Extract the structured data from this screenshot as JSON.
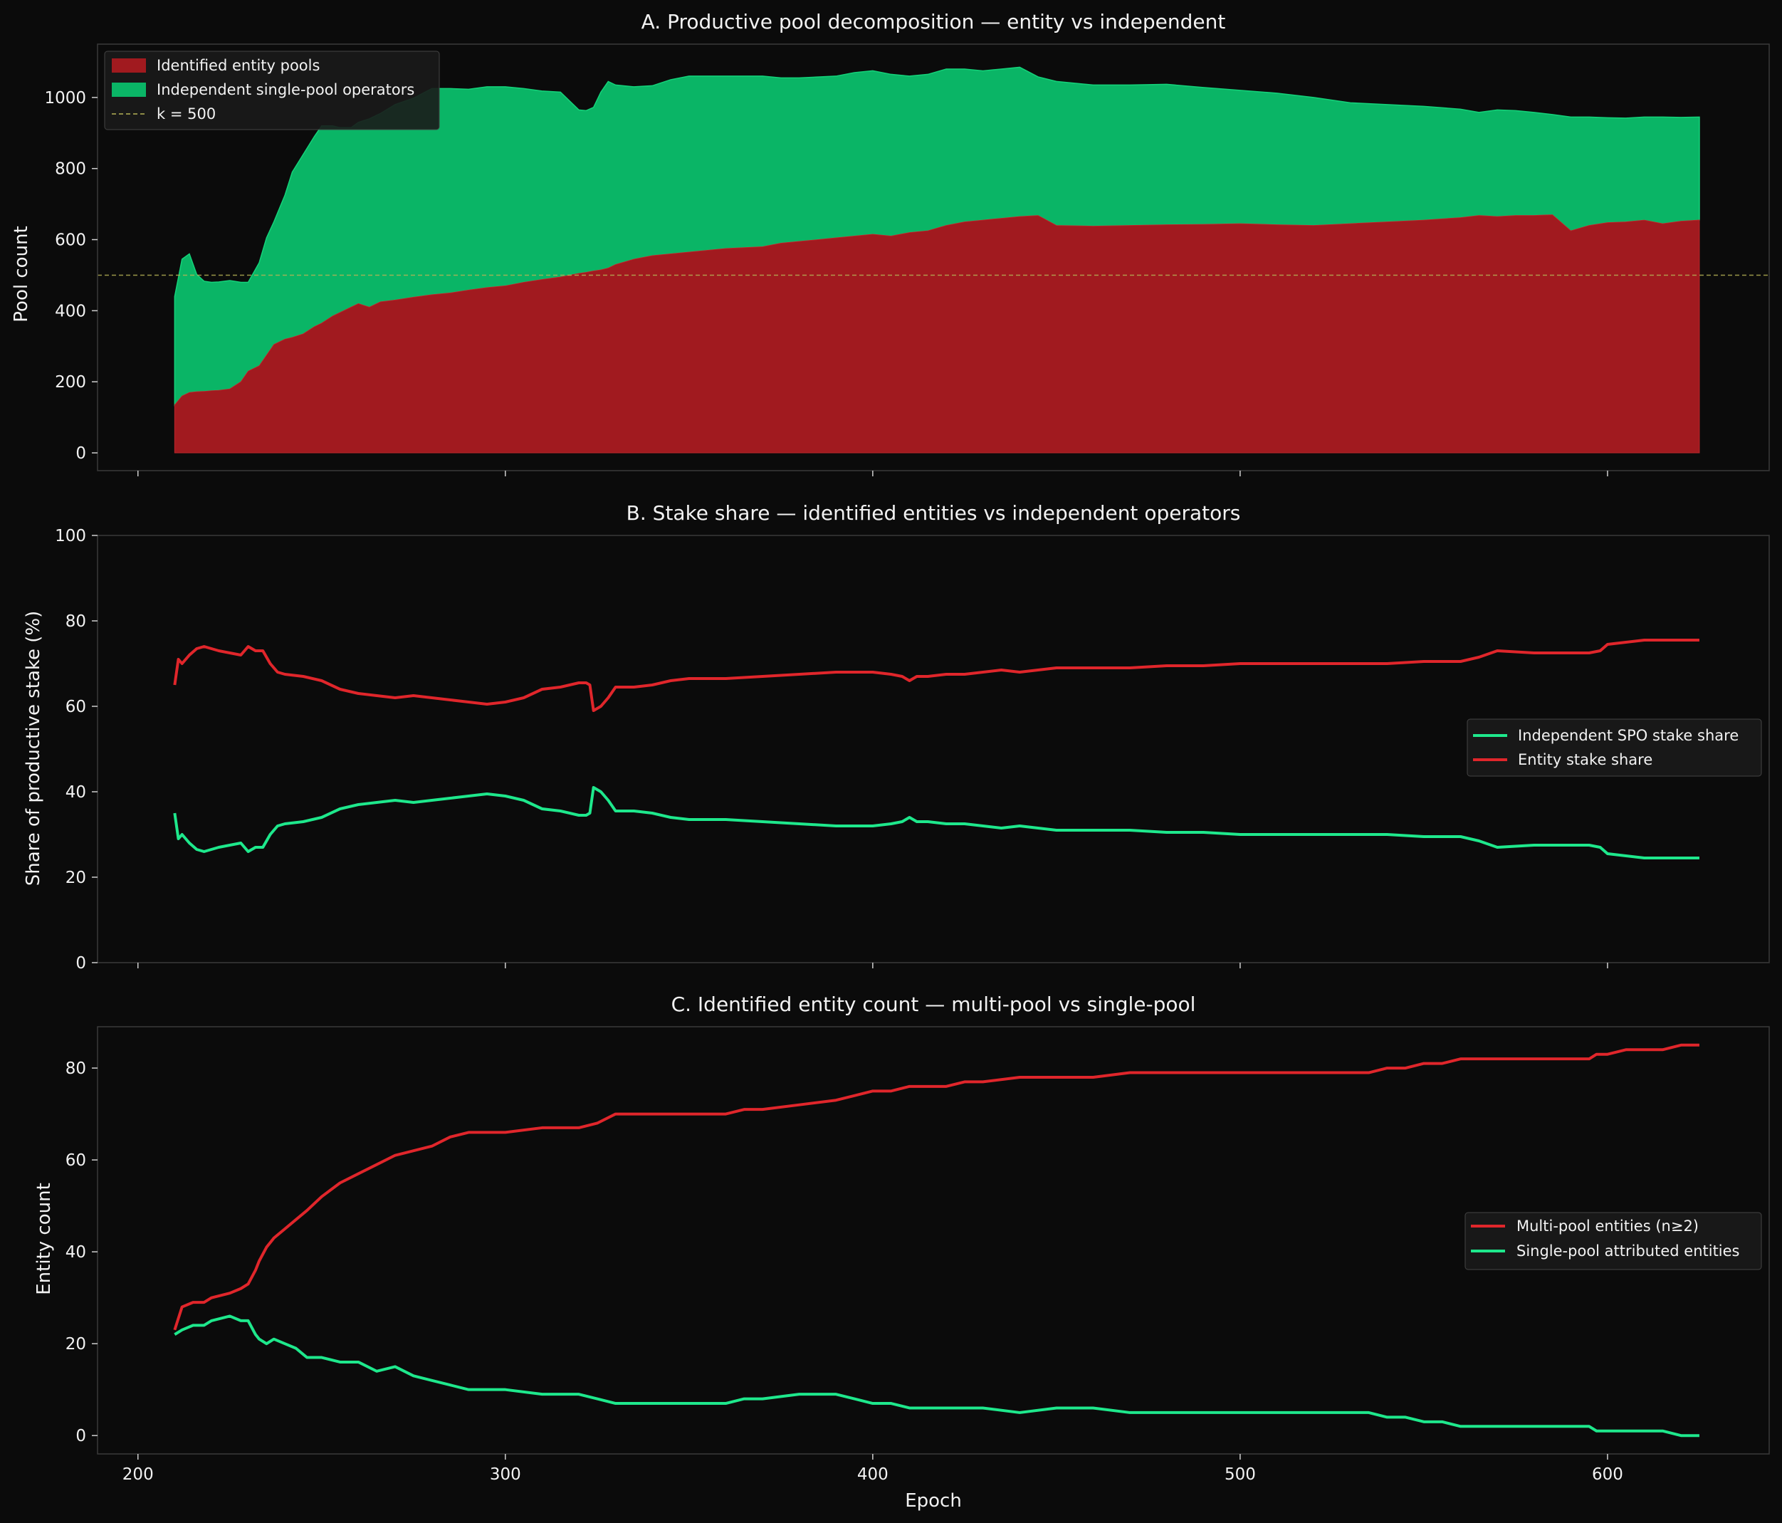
{
  "colors": {
    "background": "#0b0b0b",
    "entity_red": "#a11a1f",
    "entity_line_red": "#e0262b",
    "independent_green": "#0ab566",
    "independent_line_green": "#1ee88c",
    "k_line": "#b5b255",
    "axes_edge": "#3a3a3a"
  },
  "chart_data": [
    {
      "type": "area",
      "title": "A. Productive pool decomposition — entity vs independent",
      "xlabel": "",
      "ylabel": "Pool count",
      "xlim": [
        189,
        644
      ],
      "ylim": [
        -50,
        1150
      ],
      "xticks": [
        200,
        300,
        400,
        500,
        600
      ],
      "yticks": [
        0,
        200,
        400,
        600,
        800,
        1000
      ],
      "xtick_labels_shown": false,
      "legend": {
        "position": "top-left",
        "entries": [
          "Identified entity pools",
          "Independent single-pool operators",
          "k = 500"
        ]
      },
      "reference_line": {
        "label": "k = 500",
        "y": 500,
        "style": "dashed"
      },
      "stacked": true,
      "x": [
        210,
        212,
        214,
        216,
        218,
        220,
        222,
        225,
        228,
        230,
        233,
        235,
        237,
        240,
        242,
        245,
        248,
        250,
        253,
        255,
        258,
        260,
        263,
        266,
        270,
        275,
        280,
        285,
        290,
        295,
        300,
        305,
        310,
        315,
        320,
        322,
        324,
        326,
        328,
        330,
        335,
        340,
        345,
        350,
        360,
        370,
        375,
        380,
        390,
        395,
        400,
        405,
        410,
        415,
        420,
        425,
        430,
        435,
        440,
        445,
        450,
        460,
        470,
        480,
        490,
        500,
        510,
        520,
        530,
        540,
        550,
        560,
        565,
        570,
        575,
        580,
        585,
        590,
        595,
        600,
        605,
        610,
        615,
        620,
        625
      ],
      "series": [
        {
          "name": "Identified entity pools",
          "values": [
            135,
            160,
            170,
            172,
            173,
            175,
            176,
            180,
            200,
            230,
            245,
            275,
            305,
            320,
            325,
            335,
            355,
            365,
            385,
            395,
            410,
            420,
            410,
            425,
            430,
            438,
            445,
            450,
            458,
            465,
            470,
            480,
            488,
            495,
            505,
            508,
            512,
            515,
            520,
            530,
            545,
            555,
            560,
            565,
            575,
            580,
            590,
            595,
            605,
            610,
            615,
            610,
            620,
            625,
            640,
            650,
            655,
            660,
            665,
            668,
            640,
            638,
            640,
            642,
            643,
            645,
            642,
            640,
            645,
            650,
            655,
            662,
            668,
            665,
            668,
            668,
            670,
            625,
            640,
            648,
            650,
            655,
            645,
            652,
            655
          ]
        },
        {
          "name": "Independent single-pool operators",
          "values": [
            305,
            385,
            390,
            330,
            310,
            305,
            305,
            305,
            280,
            250,
            290,
            330,
            345,
            405,
            465,
            505,
            535,
            555,
            535,
            520,
            505,
            510,
            530,
            530,
            550,
            560,
            580,
            575,
            565,
            565,
            560,
            545,
            530,
            520,
            460,
            455,
            460,
            500,
            525,
            505,
            485,
            478,
            490,
            495,
            485,
            480,
            465,
            460,
            455,
            460,
            460,
            455,
            440,
            440,
            440,
            430,
            420,
            420,
            420,
            390,
            405,
            397,
            395,
            395,
            385,
            375,
            370,
            360,
            340,
            330,
            320,
            305,
            290,
            300,
            295,
            290,
            282,
            320,
            305,
            295,
            292,
            290,
            300,
            292,
            290
          ]
        }
      ]
    },
    {
      "type": "line",
      "title": "B. Stake share — identified entities vs independent operators",
      "xlabel": "",
      "ylabel": "Share of productive stake (%)",
      "xlim": [
        189,
        644
      ],
      "ylim": [
        0,
        100
      ],
      "xticks": [
        200,
        300,
        400,
        500,
        600
      ],
      "yticks": [
        0,
        20,
        40,
        60,
        80,
        100
      ],
      "xtick_labels_shown": false,
      "legend": {
        "position": "center-right",
        "entries": [
          "Independent SPO stake share",
          "Entity stake share"
        ]
      },
      "x": [
        210,
        211,
        212,
        214,
        216,
        218,
        220,
        222,
        225,
        228,
        230,
        232,
        234,
        236,
        238,
        240,
        245,
        250,
        255,
        260,
        265,
        270,
        275,
        280,
        285,
        290,
        295,
        300,
        305,
        310,
        315,
        320,
        322,
        323,
        324,
        326,
        328,
        330,
        335,
        340,
        345,
        350,
        360,
        370,
        380,
        390,
        395,
        400,
        405,
        408,
        410,
        412,
        415,
        420,
        425,
        430,
        435,
        440,
        445,
        450,
        460,
        470,
        480,
        490,
        500,
        510,
        520,
        530,
        540,
        550,
        560,
        565,
        570,
        580,
        590,
        595,
        598,
        600,
        605,
        610,
        615,
        620,
        625
      ],
      "series": [
        {
          "name": "Independent SPO stake share",
          "values": [
            35,
            29,
            30,
            28,
            26.5,
            26,
            26.5,
            27,
            27.5,
            28,
            26,
            27,
            27,
            30,
            32,
            32.5,
            33,
            34,
            36,
            37,
            37.5,
            38,
            37.5,
            38,
            38.5,
            39,
            39.5,
            39,
            38,
            36,
            35.5,
            34.5,
            34.5,
            35,
            41,
            40,
            38,
            35.5,
            35.5,
            35,
            34,
            33.5,
            33.5,
            33,
            32.5,
            32,
            32,
            32,
            32.5,
            33,
            34,
            33,
            33,
            32.5,
            32.5,
            32,
            31.5,
            32,
            31.5,
            31,
            31,
            31,
            30.5,
            30.5,
            30,
            30,
            30,
            30,
            30,
            29.5,
            29.5,
            28.5,
            27,
            27.5,
            27.5,
            27.5,
            27,
            25.5,
            25,
            24.5,
            24.5,
            24.5,
            24.5
          ]
        },
        {
          "name": "Entity stake share",
          "values": [
            65,
            71,
            70,
            72,
            73.5,
            74,
            73.5,
            73,
            72.5,
            72,
            74,
            73,
            73,
            70,
            68,
            67.5,
            67,
            66,
            64,
            63,
            62.5,
            62,
            62.5,
            62,
            61.5,
            61,
            60.5,
            61,
            62,
            64,
            64.5,
            65.5,
            65.5,
            65,
            59,
            60,
            62,
            64.5,
            64.5,
            65,
            66,
            66.5,
            66.5,
            67,
            67.5,
            68,
            68,
            68,
            67.5,
            67,
            66,
            67,
            67,
            67.5,
            67.5,
            68,
            68.5,
            68,
            68.5,
            69,
            69,
            69,
            69.5,
            69.5,
            70,
            70,
            70,
            70,
            70,
            70.5,
            70.5,
            71.5,
            73,
            72.5,
            72.5,
            72.5,
            73,
            74.5,
            75,
            75.5,
            75.5,
            75.5,
            75.5
          ]
        }
      ]
    },
    {
      "type": "line",
      "title": "C. Identified entity count — multi-pool vs single-pool",
      "xlabel": "Epoch",
      "ylabel": "Entity count",
      "xlim": [
        189,
        644
      ],
      "ylim": [
        -4,
        89
      ],
      "xticks": [
        200,
        300,
        400,
        500,
        600
      ],
      "yticks": [
        0,
        20,
        40,
        60,
        80
      ],
      "xtick_labels_shown": true,
      "legend": {
        "position": "center-right",
        "entries": [
          "Multi-pool entities (n≥2)",
          "Single-pool attributed entities"
        ]
      },
      "x": [
        210,
        212,
        215,
        218,
        220,
        225,
        228,
        230,
        232,
        233,
        235,
        237,
        240,
        243,
        246,
        250,
        255,
        260,
        265,
        270,
        275,
        280,
        285,
        290,
        300,
        310,
        320,
        325,
        330,
        340,
        350,
        360,
        365,
        370,
        380,
        390,
        395,
        400,
        405,
        410,
        420,
        425,
        430,
        440,
        450,
        460,
        470,
        480,
        490,
        500,
        510,
        520,
        530,
        535,
        540,
        545,
        550,
        555,
        560,
        570,
        580,
        590,
        595,
        597,
        600,
        605,
        610,
        615,
        620,
        625
      ],
      "series": [
        {
          "name": "Multi-pool entities (n≥2)",
          "values": [
            23,
            28,
            29,
            29,
            30,
            31,
            32,
            33,
            36,
            38,
            41,
            43,
            45,
            47,
            49,
            52,
            55,
            57,
            59,
            61,
            62,
            63,
            65,
            66,
            66,
            67,
            67,
            68,
            70,
            70,
            70,
            70,
            71,
            71,
            72,
            73,
            74,
            75,
            75,
            76,
            76,
            77,
            77,
            78,
            78,
            78,
            79,
            79,
            79,
            79,
            79,
            79,
            79,
            79,
            80,
            80,
            81,
            81,
            82,
            82,
            82,
            82,
            82,
            83,
            83,
            84,
            84,
            84,
            85,
            85
          ]
        },
        {
          "name": "Single-pool attributed entities",
          "values": [
            22,
            23,
            24,
            24,
            25,
            26,
            25,
            25,
            22,
            21,
            20,
            21,
            20,
            19,
            17,
            17,
            16,
            16,
            14,
            15,
            13,
            12,
            11,
            10,
            10,
            9,
            9,
            8,
            7,
            7,
            7,
            7,
            8,
            8,
            9,
            9,
            8,
            7,
            7,
            6,
            6,
            6,
            6,
            5,
            6,
            6,
            5,
            5,
            5,
            5,
            5,
            5,
            5,
            5,
            4,
            4,
            3,
            3,
            2,
            2,
            2,
            2,
            2,
            1,
            1,
            1,
            1,
            1,
            0,
            0
          ]
        }
      ]
    }
  ]
}
